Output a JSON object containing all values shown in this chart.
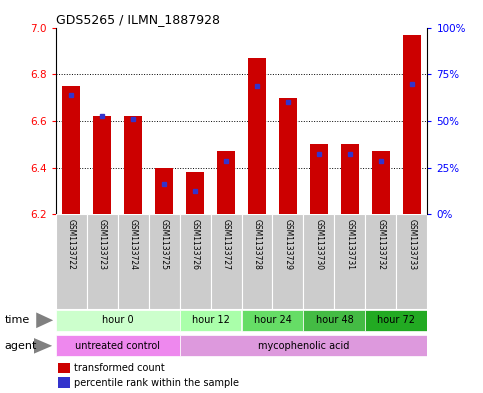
{
  "title": "GDS5265 / ILMN_1887928",
  "samples": [
    "GSM1133722",
    "GSM1133723",
    "GSM1133724",
    "GSM1133725",
    "GSM1133726",
    "GSM1133727",
    "GSM1133728",
    "GSM1133729",
    "GSM1133730",
    "GSM1133731",
    "GSM1133732",
    "GSM1133733"
  ],
  "transformed_count": [
    6.75,
    6.62,
    6.62,
    6.4,
    6.38,
    6.47,
    6.87,
    6.7,
    6.5,
    6.5,
    6.47,
    6.97
  ],
  "percentile_rank": [
    6.71,
    6.62,
    6.61,
    6.33,
    6.3,
    6.43,
    6.75,
    6.68,
    6.46,
    6.46,
    6.43,
    6.76
  ],
  "ymin": 6.2,
  "ymax": 7.0,
  "yticks_left": [
    6.2,
    6.4,
    6.6,
    6.8,
    7.0
  ],
  "yticks_right_pct": [
    0,
    25,
    50,
    75,
    100
  ],
  "bar_color": "#cc0000",
  "blue_color": "#3333cc",
  "sample_bg": "#cccccc",
  "time_groups": [
    {
      "label": "hour 0",
      "start": 0,
      "end": 4,
      "color": "#ccffcc"
    },
    {
      "label": "hour 12",
      "start": 4,
      "end": 6,
      "color": "#aaffaa"
    },
    {
      "label": "hour 24",
      "start": 6,
      "end": 8,
      "color": "#66dd66"
    },
    {
      "label": "hour 48",
      "start": 8,
      "end": 10,
      "color": "#44bb44"
    },
    {
      "label": "hour 72",
      "start": 10,
      "end": 12,
      "color": "#22aa22"
    }
  ],
  "agent_groups": [
    {
      "label": "untreated control",
      "start": 0,
      "end": 4,
      "color": "#ee88ee"
    },
    {
      "label": "mycophenolic acid",
      "start": 4,
      "end": 12,
      "color": "#dd99dd"
    }
  ],
  "legend_red": "transformed count",
  "legend_blue": "percentile rank within the sample"
}
